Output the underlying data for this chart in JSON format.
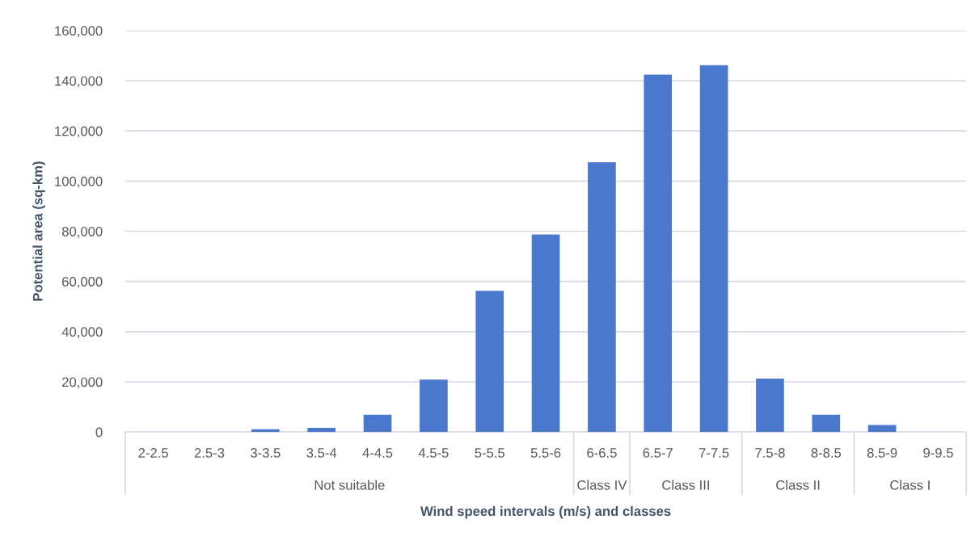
{
  "chart_data": {
    "type": "bar",
    "xlabel": "Wind speed intervals (m/s) and classes",
    "ylabel": "Potential area (sq-km)",
    "categories": [
      "2-2.5",
      "2.5-3",
      "3-3.5",
      "3.5-4",
      "4-4.5",
      "4.5-5",
      "5-5.5",
      "5.5-6",
      "6-6.5",
      "6.5-7",
      "7-7.5",
      "7.5-8",
      "8-8.5",
      "8.5-9",
      "9-9.5"
    ],
    "values": [
      0,
      0,
      1100,
      1700,
      6900,
      20900,
      56300,
      78700,
      107500,
      142400,
      146200,
      21300,
      6900,
      2800,
      0
    ],
    "color": "#4a78cc",
    "ylim": [
      0,
      160000
    ],
    "yticks": [
      {
        "value": 0,
        "label": "0"
      },
      {
        "value": 20000,
        "label": "20,000"
      },
      {
        "value": 40000,
        "label": "40,000"
      },
      {
        "value": 60000,
        "label": "60,000"
      },
      {
        "value": 80000,
        "label": "80,000"
      },
      {
        "value": 100000,
        "label": "100,000"
      },
      {
        "value": 120000,
        "label": "120,000"
      },
      {
        "value": 140000,
        "label": "140,000"
      },
      {
        "value": 160000,
        "label": "160,000"
      }
    ],
    "grid": "y",
    "annotations": [
      "Not suitable",
      "Class IV",
      "Class III",
      "Class II",
      "Class I"
    ]
  }
}
